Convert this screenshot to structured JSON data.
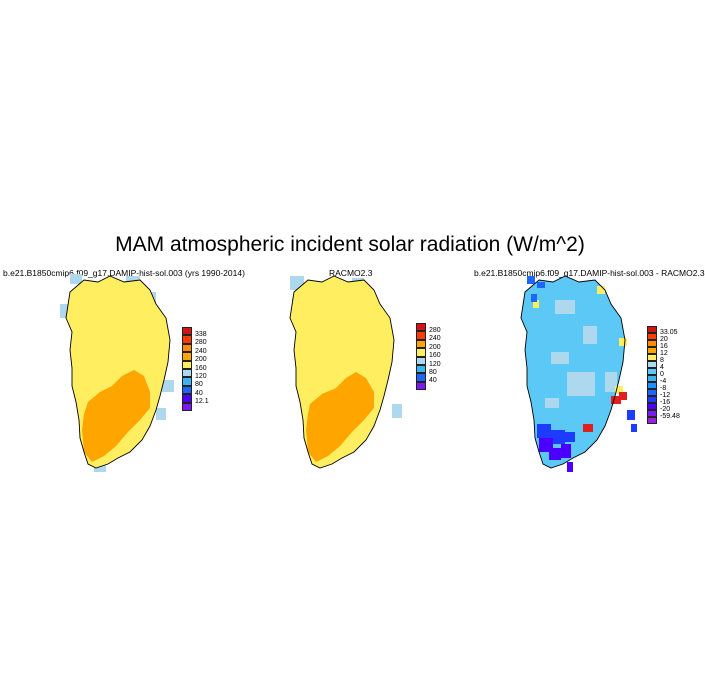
{
  "title": "MAM atmospheric incident solar radiation (W/m^2)",
  "panels": [
    {
      "title": "b.e21.B1850cmip6.f09_g17.DAMIP-hist-sol.003 (yrs 1990-2014)",
      "colorbar": {
        "labels": [
          "338",
          "280",
          "240",
          "200",
          "160",
          "120",
          "80",
          "40",
          "12.1"
        ],
        "colors": [
          "#d21414",
          "#ff3c00",
          "#ff8c00",
          "#ffa500",
          "#ffee60",
          "#aed8ee",
          "#3cb4f0",
          "#1e64ff",
          "#4b00ff",
          "#7a1cf0"
        ]
      }
    },
    {
      "title": "RACMO2.3",
      "colorbar": {
        "labels": [
          "280",
          "240",
          "200",
          "160",
          "120",
          "80",
          "40"
        ],
        "colors": [
          "#d21414",
          "#ff3c00",
          "#ffa500",
          "#ffee60",
          "#aed8ee",
          "#3cb4f0",
          "#1e64ff",
          "#7a1cf0"
        ]
      }
    },
    {
      "title": "b.e21.B1850cmip6.f09_g17.DAMIP-hist-sol.003 - RACMO2.3",
      "colorbar": {
        "labels": [
          "33.05",
          "20",
          "16",
          "12",
          "8",
          "4",
          "0",
          "-4",
          "-8",
          "-12",
          "-16",
          "-20",
          "-59.48"
        ],
        "colors": [
          "#d21414",
          "#ff3c00",
          "#ff8c00",
          "#ffa500",
          "#ffee60",
          "#aed8ee",
          "#5bc8f5",
          "#3cb4f0",
          "#1e90ff",
          "#1e64ff",
          "#1e3cff",
          "#4b00ff",
          "#7a1cf0",
          "#9a20e0"
        ]
      }
    }
  ],
  "fill_colors": {
    "land": "#ffee60",
    "south": "#ffa500",
    "coast": "#aed8ee",
    "diff_main": "#5bc8f5",
    "diff_light": "#aed8ee",
    "diff_blue": "#1e3cff",
    "diff_purple": "#4b00ff",
    "diff_red": "#e02020"
  }
}
